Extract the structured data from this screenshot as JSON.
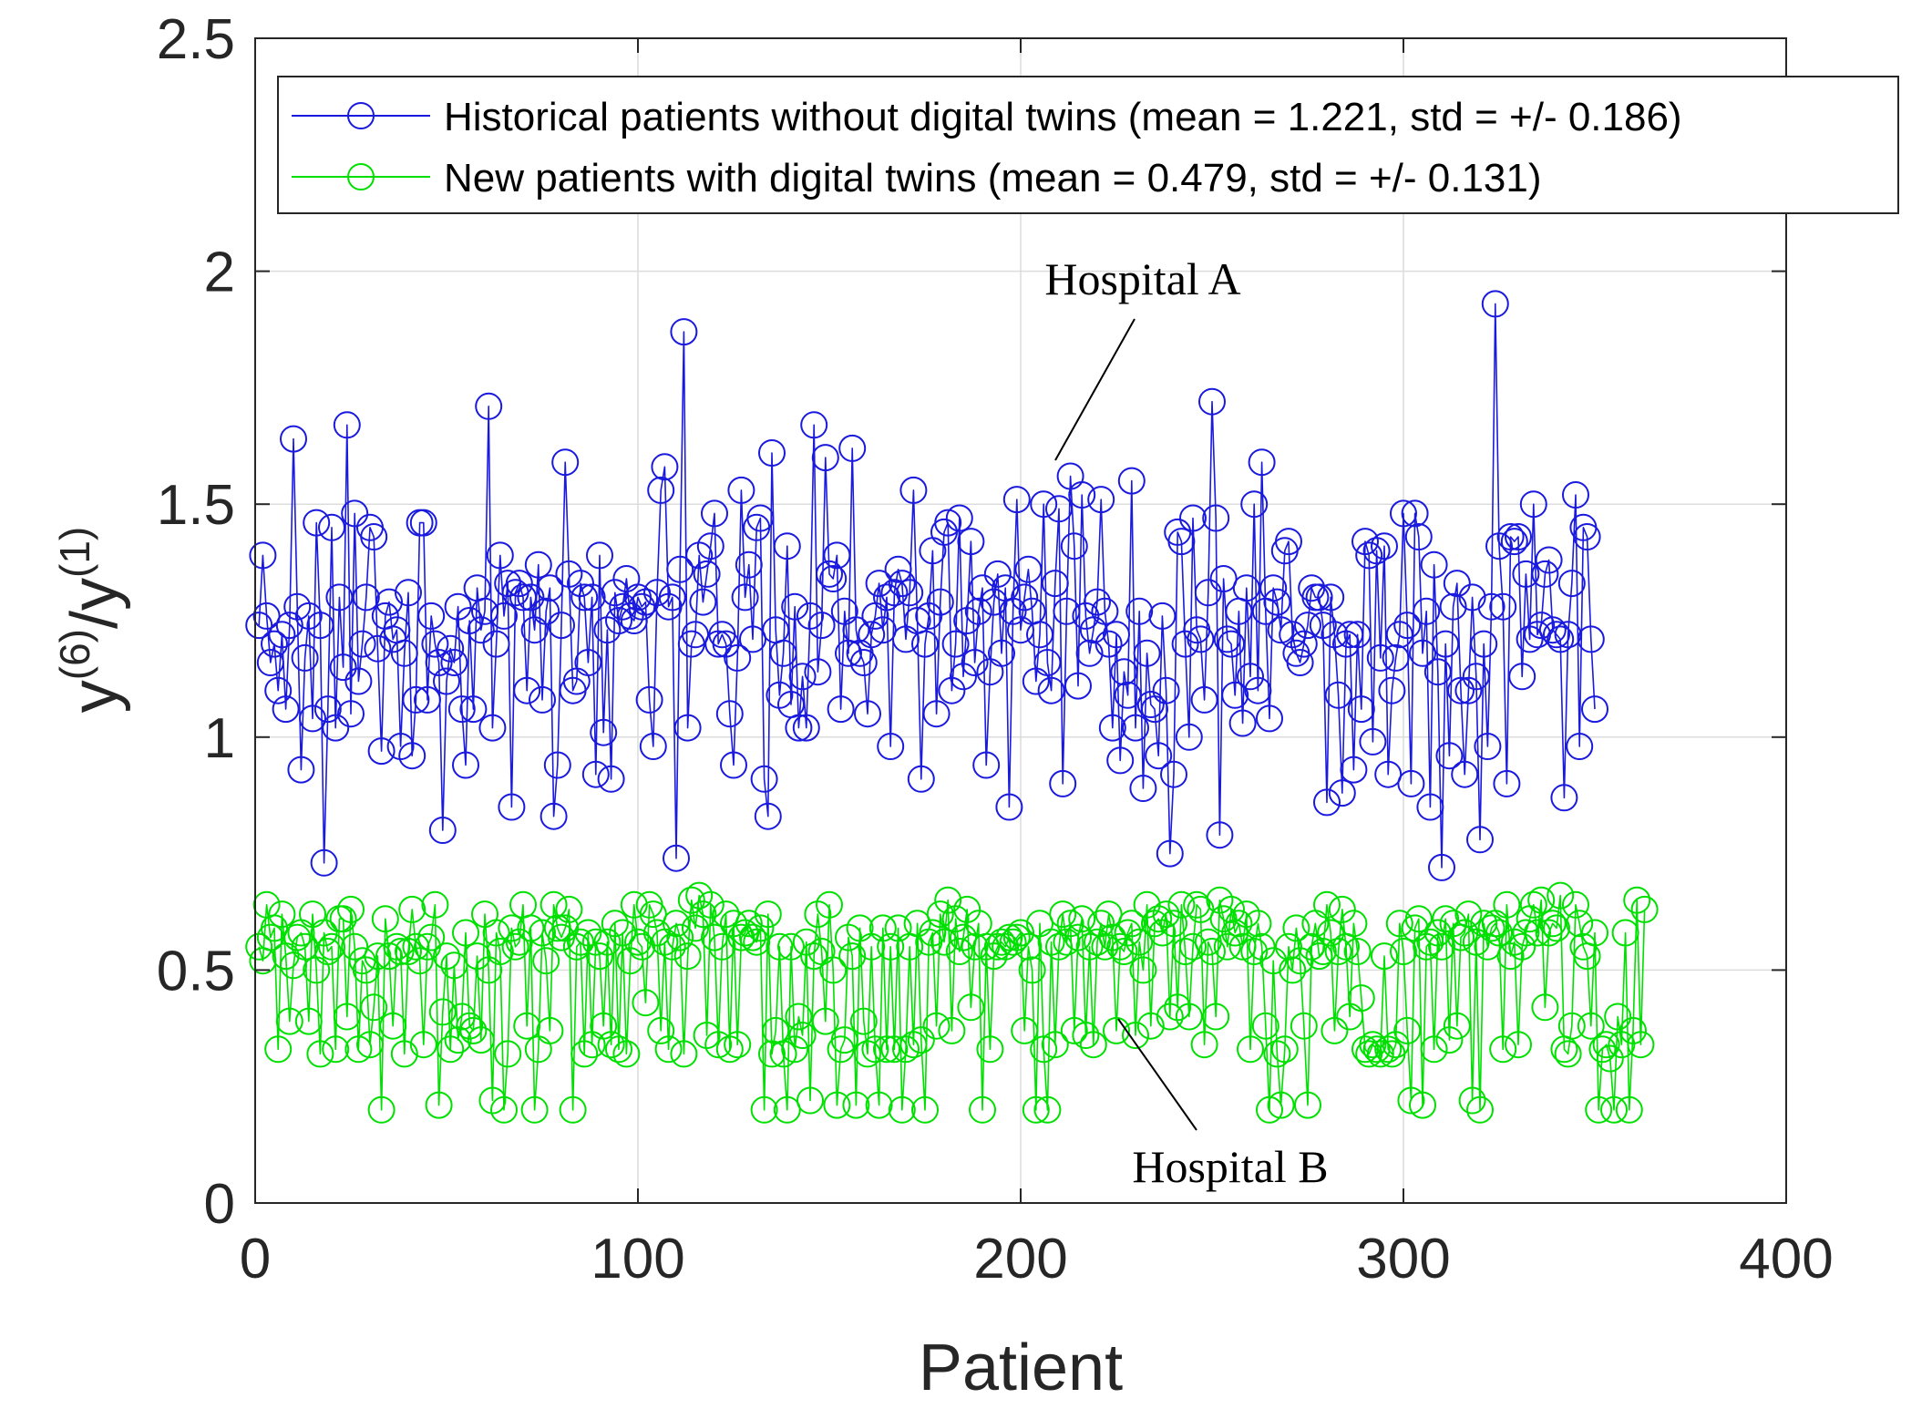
{
  "chart_data": {
    "type": "line",
    "xlabel": "Patient",
    "ylabel_base": "y",
    "ylabel_num_sup": "(6)",
    "ylabel_slash": "/",
    "ylabel_den_sup": "(1)",
    "xlim": [
      0,
      400
    ],
    "ylim": [
      0,
      2.5
    ],
    "xticks": [
      0,
      100,
      200,
      300,
      400
    ],
    "xtick_labels": [
      "0",
      "100",
      "200",
      "300",
      "400"
    ],
    "yticks": [
      0,
      0.5,
      1,
      1.5,
      2,
      2.5
    ],
    "ytick_labels": [
      "0",
      "0.5",
      "1",
      "1.5",
      "2",
      "2.5"
    ],
    "grid": true,
    "legend_position": "top",
    "series": [
      {
        "name": "Historical patients without digital twins (mean = 1.221, std = +/- 0.186)",
        "color": "#1a1adf",
        "marker": "circle",
        "values": [
          1.24,
          1.39,
          1.26,
          1.16,
          1.2,
          1.1,
          1.22,
          1.06,
          1.24,
          1.64,
          1.28,
          0.93,
          1.17,
          1.26,
          1.04,
          1.46,
          1.24,
          0.73,
          1.06,
          1.45,
          1.02,
          1.3,
          1.15,
          1.67,
          1.05,
          1.48,
          1.12,
          1.2,
          1.3,
          1.45,
          1.43,
          1.19,
          0.97,
          1.26,
          1.29,
          1.21,
          1.23,
          0.98,
          1.18,
          1.31,
          0.96,
          1.08,
          1.46,
          1.46,
          1.08,
          1.26,
          1.2,
          1.16,
          0.8,
          1.12,
          1.19,
          1.16,
          1.28,
          1.06,
          0.94,
          1.25,
          1.06,
          1.32,
          1.23,
          1.27,
          1.71,
          1.02,
          1.2,
          1.39,
          1.26,
          1.33,
          0.85,
          1.31,
          1.33,
          1.3,
          1.1,
          1.3,
          1.23,
          1.37,
          1.08,
          1.27,
          1.32,
          0.83,
          0.94,
          1.24,
          1.59,
          1.35,
          1.1,
          1.12,
          1.33,
          1.3,
          1.16,
          1.3,
          0.92,
          1.39,
          1.01,
          1.23,
          0.91,
          1.31,
          1.25,
          1.28,
          1.34,
          1.26,
          1.25,
          1.3,
          1.28,
          1.29,
          1.08,
          0.98,
          1.31,
          1.53,
          1.58,
          1.28,
          1.3,
          0.74,
          1.36,
          1.87,
          1.02,
          1.2,
          1.22,
          1.39,
          1.29,
          1.35,
          1.41,
          1.48,
          1.2,
          1.22,
          1.2,
          1.05,
          0.94,
          1.17,
          1.53,
          1.3,
          1.37,
          1.21,
          1.45,
          1.47,
          0.91,
          0.83,
          1.61,
          1.23,
          1.09,
          1.18,
          1.41,
          1.07,
          1.28,
          1.02,
          1.13,
          1.02,
          1.26,
          1.67,
          1.14,
          1.24,
          1.6,
          1.35,
          1.34,
          1.39,
          1.06,
          1.27,
          1.18,
          1.62,
          1.23,
          1.18,
          1.16,
          1.05,
          1.22,
          1.26,
          1.33,
          1.23,
          1.3,
          0.98,
          1.31,
          1.36,
          1.33,
          1.21,
          1.31,
          1.53,
          1.25,
          0.91,
          1.2,
          1.26,
          1.4,
          1.05,
          1.29,
          1.44,
          1.46,
          1.1,
          1.2,
          1.47,
          1.13,
          1.25,
          1.42,
          1.16,
          1.27,
          1.32,
          0.94,
          1.14,
          1.29,
          1.35,
          1.18,
          1.32,
          0.85,
          1.27,
          1.51,
          1.23,
          1.3,
          1.36,
          1.27,
          1.12,
          1.22,
          1.5,
          1.16,
          1.1,
          1.33,
          1.49,
          0.9,
          1.27,
          1.56,
          1.41,
          1.11,
          1.52,
          1.26,
          1.18,
          1.23,
          1.29,
          1.51,
          1.27,
          1.2,
          1.02,
          1.22,
          0.95,
          1.14,
          1.09,
          1.55,
          1.02,
          1.27,
          0.89,
          1.18,
          1.07,
          1.06,
          0.96,
          1.26,
          1.1,
          0.75,
          0.92,
          1.44,
          1.42,
          1.2,
          1.0,
          1.47,
          1.23,
          1.21,
          1.08,
          1.31,
          1.72,
          1.47,
          0.79,
          1.34,
          1.21,
          1.2,
          1.09,
          1.27,
          1.03,
          1.32,
          1.13,
          1.5,
          1.1,
          1.59,
          1.27,
          1.04,
          1.32,
          1.29,
          1.23,
          1.4,
          1.42,
          1.22,
          1.18,
          1.16,
          1.2,
          1.24,
          1.32,
          1.3,
          1.3,
          1.24,
          0.86,
          1.3,
          1.22,
          1.09,
          0.88,
          1.2,
          1.22,
          0.93,
          1.22,
          1.06,
          1.42,
          1.39,
          0.99,
          1.4,
          1.17,
          1.41,
          0.92,
          1.1,
          1.17,
          1.22,
          1.48,
          1.24,
          0.9,
          1.48,
          1.43,
          1.18,
          1.27,
          0.85,
          1.37,
          1.14,
          0.72,
          1.2,
          0.96,
          1.28,
          1.33,
          1.1,
          0.92,
          1.1,
          1.3,
          1.13,
          0.78,
          1.2,
          0.98,
          1.28,
          1.93,
          1.41,
          1.28,
          0.9,
          1.43,
          1.42,
          1.43,
          1.13,
          1.35,
          1.21,
          1.5,
          1.22,
          1.24,
          1.35,
          1.38,
          1.23,
          1.22,
          1.21,
          0.87,
          1.22,
          1.33,
          1.52,
          0.98,
          1.45,
          1.43,
          1.21,
          1.06
        ]
      },
      {
        "name": "New patients with digital twins (mean = 0.479, std = +/- 0.131)",
        "color": "#00e000",
        "marker": "circle",
        "values": [
          0.55,
          0.52,
          0.64,
          0.57,
          0.59,
          0.33,
          0.62,
          0.53,
          0.39,
          0.51,
          0.57,
          0.58,
          0.55,
          0.39,
          0.62,
          0.5,
          0.32,
          0.58,
          0.54,
          0.55,
          0.33,
          0.61,
          0.61,
          0.4,
          0.63,
          0.55,
          0.33,
          0.52,
          0.5,
          0.34,
          0.42,
          0.53,
          0.2,
          0.61,
          0.53,
          0.38,
          0.55,
          0.54,
          0.32,
          0.54,
          0.63,
          0.55,
          0.52,
          0.34,
          0.55,
          0.57,
          0.64,
          0.21,
          0.41,
          0.53,
          0.33,
          0.51,
          0.35,
          0.4,
          0.58,
          0.38,
          0.37,
          0.53,
          0.35,
          0.62,
          0.5,
          0.22,
          0.58,
          0.54,
          0.2,
          0.32,
          0.59,
          0.55,
          0.56,
          0.64,
          0.38,
          0.59,
          0.2,
          0.33,
          0.58,
          0.52,
          0.37,
          0.64,
          0.59,
          0.57,
          0.59,
          0.63,
          0.2,
          0.55,
          0.56,
          0.32,
          0.58,
          0.34,
          0.56,
          0.53,
          0.38,
          0.56,
          0.34,
          0.6,
          0.33,
          0.58,
          0.32,
          0.52,
          0.64,
          0.56,
          0.55,
          0.43,
          0.64,
          0.62,
          0.58,
          0.37,
          0.56,
          0.33,
          0.55,
          0.6,
          0.57,
          0.32,
          0.53,
          0.65,
          0.59,
          0.66,
          0.62,
          0.36,
          0.64,
          0.57,
          0.34,
          0.55,
          0.62,
          0.33,
          0.6,
          0.34,
          0.57,
          0.58,
          0.6,
          0.57,
          0.56,
          0.59,
          0.2,
          0.62,
          0.32,
          0.37,
          0.55,
          0.32,
          0.2,
          0.55,
          0.33,
          0.4,
          0.36,
          0.56,
          0.22,
          0.53,
          0.62,
          0.54,
          0.39,
          0.64,
          0.5,
          0.21,
          0.33,
          0.35,
          0.57,
          0.53,
          0.21,
          0.59,
          0.39,
          0.32,
          0.55,
          0.33,
          0.21,
          0.59,
          0.33,
          0.55,
          0.33,
          0.59,
          0.2,
          0.33,
          0.55,
          0.34,
          0.6,
          0.35,
          0.2,
          0.56,
          0.58,
          0.38,
          0.62,
          0.56,
          0.65,
          0.37,
          0.61,
          0.54,
          0.57,
          0.63,
          0.42,
          0.55,
          0.6,
          0.2,
          0.55,
          0.33,
          0.53,
          0.55,
          0.56,
          0.55,
          0.57,
          0.56,
          0.57,
          0.58,
          0.37,
          0.55,
          0.5,
          0.2,
          0.6,
          0.33,
          0.2,
          0.56,
          0.34,
          0.55,
          0.62,
          0.56,
          0.6,
          0.37,
          0.57,
          0.61,
          0.36,
          0.55,
          0.34,
          0.56,
          0.6,
          0.55,
          0.62,
          0.57,
          0.37,
          0.55,
          0.54,
          0.58,
          0.6,
          0.36,
          0.56,
          0.5,
          0.64,
          0.38,
          0.6,
          0.61,
          0.58,
          0.62,
          0.4,
          0.6,
          0.42,
          0.64,
          0.54,
          0.4,
          0.55,
          0.64,
          0.63,
          0.34,
          0.56,
          0.54,
          0.4,
          0.65,
          0.61,
          0.55,
          0.63,
          0.58,
          0.6,
          0.55,
          0.62,
          0.33,
          0.54,
          0.6,
          0.55,
          0.38,
          0.2,
          0.52,
          0.32,
          0.21,
          0.33,
          0.55,
          0.5,
          0.59,
          0.52,
          0.38,
          0.21,
          0.55,
          0.6,
          0.53,
          0.54,
          0.64,
          0.58,
          0.37,
          0.54,
          0.63,
          0.55,
          0.4,
          0.6,
          0.54,
          0.44,
          0.33,
          0.32,
          0.34,
          0.33,
          0.32,
          0.53,
          0.33,
          0.32,
          0.34,
          0.6,
          0.54,
          0.37,
          0.22,
          0.59,
          0.61,
          0.21,
          0.55,
          0.56,
          0.33,
          0.58,
          0.55,
          0.61,
          0.35,
          0.6,
          0.38,
          0.57,
          0.58,
          0.62,
          0.22,
          0.56,
          0.2,
          0.6,
          0.55,
          0.59,
          0.6,
          0.58,
          0.33,
          0.64,
          0.53,
          0.56,
          0.34,
          0.55,
          0.58,
          0.61,
          0.64,
          0.58,
          0.65,
          0.42,
          0.58,
          0.6,
          0.59,
          0.66,
          0.33,
          0.32,
          0.38,
          0.64,
          0.6,
          0.55,
          0.53,
          0.38,
          0.58,
          0.2,
          0.33,
          0.34,
          0.31,
          0.2,
          0.4,
          0.34,
          0.58,
          0.2,
          0.37,
          0.65,
          0.34,
          0.63
        ]
      }
    ],
    "annotations": [
      "Hospital A",
      "Hospital B"
    ]
  }
}
